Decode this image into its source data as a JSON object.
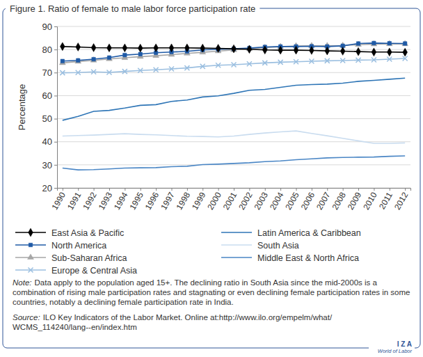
{
  "chart_data": {
    "type": "line",
    "title": "Figure 1. Ratio of female to male labor force participation rate",
    "y_label": "Percentage",
    "categories": [
      "1990",
      "1991",
      "1992",
      "1993",
      "1994",
      "1995",
      "1996",
      "1997",
      "1998",
      "1999",
      "2000",
      "2001",
      "2002",
      "2003",
      "2004",
      "2005",
      "2006",
      "2007",
      "2008",
      "2009",
      "2010",
      "2011",
      "2012"
    ],
    "ylim": [
      20,
      90
    ],
    "yticks": [
      20,
      30,
      40,
      50,
      60,
      70,
      80,
      90
    ],
    "grid": true,
    "legend": "bottom",
    "series": [
      {
        "name": "East Asia & Pacific",
        "color": "#000000",
        "marker": "diamond",
        "line_style": "solid",
        "values": [
          81.3,
          81.1,
          80.8,
          80.7,
          80.7,
          80.6,
          80.7,
          80.7,
          80.7,
          80.6,
          80.5,
          80.3,
          80.1,
          79.8,
          79.7,
          79.7,
          79.6,
          79.4,
          79.3,
          79.1,
          78.9,
          78.9,
          78.8
        ]
      },
      {
        "name": "North America",
        "color": "#1f5aa6",
        "marker": "square",
        "line_style": "solid",
        "values": [
          75.0,
          75.3,
          75.8,
          76.5,
          77.6,
          78.0,
          78.6,
          78.9,
          79.2,
          79.8,
          80.1,
          80.3,
          80.6,
          81.1,
          81.3,
          81.3,
          81.4,
          81.3,
          81.6,
          82.6,
          82.8,
          82.7,
          82.6
        ]
      },
      {
        "name": "Sub-Saharan Africa",
        "color": "#a6a6a6",
        "marker": "triangle",
        "line_style": "solid",
        "values": [
          74.2,
          74.8,
          75.3,
          75.9,
          76.4,
          76.9,
          77.3,
          77.8,
          78.3,
          78.8,
          79.3,
          79.8,
          80.3,
          80.8,
          81.2,
          81.5,
          81.6,
          81.6,
          81.7,
          82.1,
          82.3,
          82.4,
          82.4
        ]
      },
      {
        "name": "Europe & Central Asia",
        "color": "#9bbfe0",
        "marker": "x",
        "line_style": "solid",
        "values": [
          69.9,
          70.0,
          70.3,
          70.1,
          70.5,
          70.9,
          71.2,
          71.6,
          72.0,
          72.7,
          73.2,
          73.4,
          73.8,
          74.2,
          74.5,
          74.7,
          74.9,
          75.1,
          75.2,
          75.4,
          75.5,
          75.8,
          76.1
        ]
      },
      {
        "name": "Latin America & Caribbean",
        "color": "#2e75b6",
        "marker": "none",
        "line_style": "solid",
        "values": [
          49.3,
          51.0,
          53.2,
          53.6,
          54.6,
          55.8,
          56.1,
          57.5,
          58.1,
          59.4,
          59.9,
          61.0,
          62.3,
          62.7,
          63.6,
          64.5,
          64.8,
          65.0,
          65.4,
          66.2,
          66.6,
          67.1,
          67.6
        ]
      },
      {
        "name": "South Asia",
        "color": "#c9dcef",
        "marker": "none",
        "line_style": "solid",
        "values": [
          42.5,
          42.7,
          42.9,
          43.2,
          43.5,
          43.2,
          43.0,
          42.7,
          42.4,
          42.3,
          42.1,
          42.5,
          43.2,
          43.8,
          44.3,
          44.7,
          43.6,
          42.6,
          41.5,
          40.4,
          39.3,
          39.3,
          39.5
        ]
      },
      {
        "name": "Middle East & North Africa",
        "color": "#4a86c5",
        "marker": "none",
        "line_style": "solid",
        "values": [
          28.6,
          27.8,
          27.9,
          28.2,
          28.6,
          28.7,
          28.8,
          29.2,
          29.4,
          30.1,
          30.3,
          30.6,
          30.9,
          31.4,
          31.7,
          32.2,
          32.6,
          33.0,
          33.2,
          33.3,
          33.4,
          33.7,
          33.9
        ]
      }
    ],
    "note_label": "Note:",
    "note": "Data apply to the population aged 15+. The declining ratio in South Asia since the mid-2000s is a combination of rising male participation rates and stagnating or even declining female participation rates in some countries, notably a declining female participation rate in India.",
    "source_label": "Source:",
    "source": "ILO Key Indicators of the Labor Market. Online at:http://www.ilo.org/empelm/what/WCMS_114240/lang--en/index.htm",
    "logo": "I Z A",
    "logo_subtitle": "World of Labor"
  }
}
